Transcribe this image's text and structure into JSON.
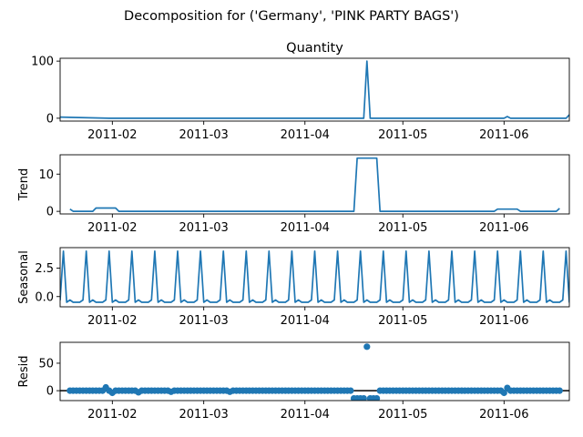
{
  "chart_data": {
    "suptitle": "Decomposition for ('Germany', 'PINK PARTY BAGS')",
    "x_ticks": [
      "2011-02",
      "2011-03",
      "2011-04",
      "2011-05",
      "2011-06"
    ],
    "x_range": [
      "2011-01-16",
      "2011-06-21"
    ],
    "panels": [
      {
        "type": "line",
        "title": "Quantity",
        "ylabel": "",
        "y_ticks": [
          0,
          100
        ],
        "ylim": [
          -5,
          105
        ],
        "color": "#1f77b4",
        "x": [
          "2011-01-16",
          "2011-01-31",
          "2011-02-01",
          "2011-04-19",
          "2011-04-20",
          "2011-04-21",
          "2011-06-01",
          "2011-06-02",
          "2011-06-03",
          "2011-06-20",
          "2011-06-21"
        ],
        "values": [
          2,
          0,
          0,
          0,
          100,
          0,
          0,
          3,
          0,
          0,
          6
        ]
      },
      {
        "type": "line",
        "title": "",
        "ylabel": "Trend",
        "y_ticks": [
          0,
          10
        ],
        "ylim": [
          -0.7,
          15.2
        ],
        "color": "#1f77b4",
        "x": [
          "2011-01-19",
          "2011-01-20",
          "2011-01-26",
          "2011-01-27",
          "2011-02-02",
          "2011-02-03",
          "2011-04-16",
          "2011-04-17",
          "2011-04-23",
          "2011-04-24",
          "2011-05-29",
          "2011-05-30",
          "2011-06-05",
          "2011-06-06",
          "2011-06-17",
          "2011-06-18"
        ],
        "values": [
          0.6,
          0,
          0,
          0.9,
          0.9,
          0,
          0,
          14.3,
          14.3,
          0,
          0,
          0.6,
          0.6,
          0,
          0,
          0.8
        ]
      },
      {
        "type": "line",
        "title": "",
        "ylabel": "Seasonal",
        "y_ticks": [
          0.0,
          2.5
        ],
        "y_tick_labels": [
          "0.0",
          "2.5"
        ],
        "ylim": [
          -0.9,
          4.3
        ],
        "color": "#1f77b4",
        "period_days": 7,
        "first_peak": "2011-01-17",
        "weekly_pattern": [
          4.0,
          -0.5,
          -0.3,
          -0.5,
          -0.5,
          -0.5,
          -0.3
        ]
      },
      {
        "type": "scatter",
        "title": "",
        "ylabel": "Resid",
        "y_ticks": [
          0,
          50
        ],
        "ylim": [
          -18,
          88
        ],
        "color": "#1f77b4",
        "range_start": "2011-01-19",
        "range_end": "2011-06-18",
        "baseline": 0,
        "points": [
          {
            "x": "2011-01-30",
            "y": 6
          },
          {
            "x": "2011-02-01",
            "y": -4
          },
          {
            "x": "2011-02-09",
            "y": -3
          },
          {
            "x": "2011-02-19",
            "y": -2
          },
          {
            "x": "2011-03-09",
            "y": -2
          },
          {
            "x": "2011-04-20",
            "y": 80
          },
          {
            "x": "2011-06-01",
            "y": -4
          },
          {
            "x": "2011-06-02",
            "y": 5
          }
        ],
        "segments": [
          {
            "from": "2011-04-16",
            "to": "2011-04-19",
            "y": -14
          },
          {
            "from": "2011-04-21",
            "to": "2011-04-23",
            "y": -14
          }
        ]
      }
    ]
  }
}
